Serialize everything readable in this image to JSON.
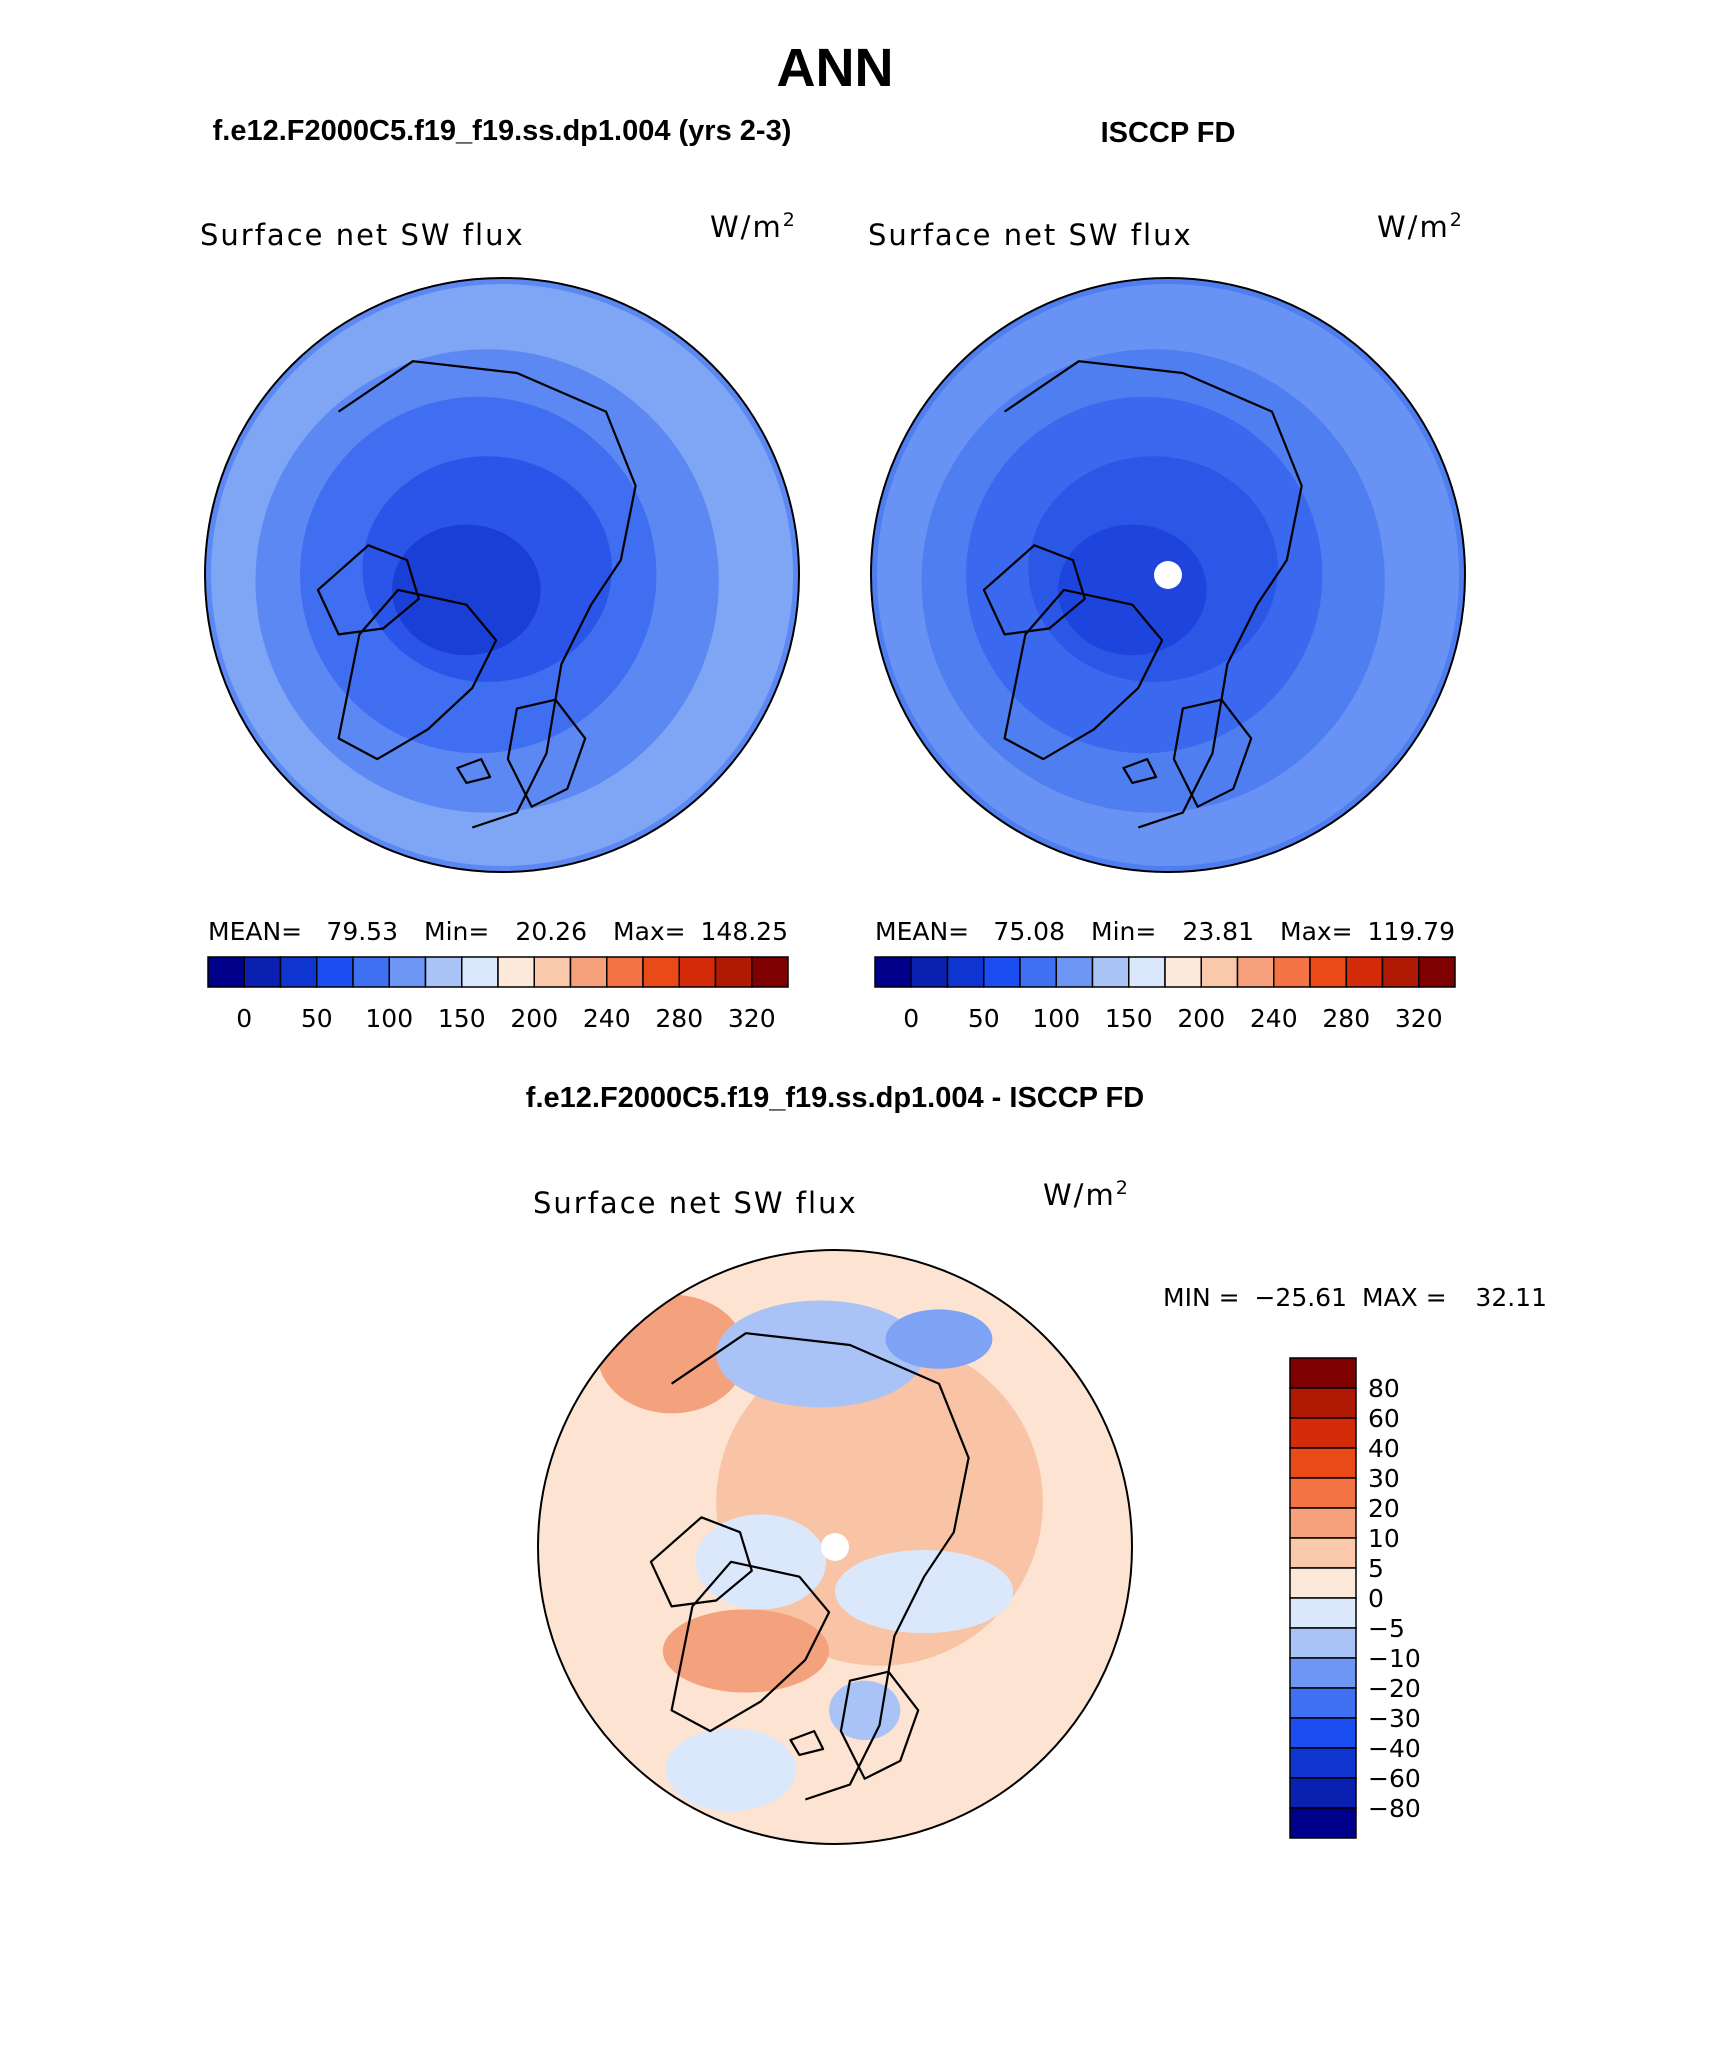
{
  "page": {
    "title": "ANN",
    "diff_title": "f.e12.F2000C5.f19_f19.ss.dp1.004 - ISCCP FD"
  },
  "chart_data": [
    {
      "type": "contour-map",
      "projection": "north-polar-stereographic",
      "header": "f.e12.F2000C5.f19_f19.ss.dp1.004 (yrs 2-3)",
      "variable": "Surface net SW flux",
      "units": "W/m",
      "units_exp": "2",
      "stats": {
        "mean_label": "MEAN=",
        "mean": "79.53",
        "min_label": "Min=",
        "min": "20.26",
        "max_label": "Max=",
        "max": "148.25"
      },
      "colorbar": {
        "orientation": "horizontal",
        "tick_labels": [
          "0",
          "50",
          "100",
          "150",
          "200",
          "240",
          "280",
          "320"
        ],
        "colors": [
          "#00008b",
          "#0a20b0",
          "#0f35d0",
          "#1a4ef0",
          "#3f70f2",
          "#6e96f4",
          "#a9c3f7",
          "#dbe8fb",
          "#fde9da",
          "#fac9ac",
          "#f6a07c",
          "#f47344",
          "#ea4a17",
          "#d32a07",
          "#b01a05",
          "#7f0000"
        ]
      },
      "fill_palette": [
        "#1a3fd6",
        "#2a55e8",
        "#3f6ef0",
        "#5b88f2",
        "#7fa5f5"
      ]
    },
    {
      "type": "contour-map",
      "projection": "north-polar-stereographic",
      "header": "ISCCP FD",
      "variable": "Surface net SW flux",
      "units": "W/m",
      "units_exp": "2",
      "stats": {
        "mean_label": "MEAN=",
        "mean": "75.08",
        "min_label": "Min=",
        "min": "23.81",
        "max_label": "Max=",
        "max": "119.79"
      },
      "colorbar": {
        "orientation": "horizontal",
        "tick_labels": [
          "0",
          "50",
          "100",
          "150",
          "200",
          "240",
          "280",
          "320"
        ],
        "colors": [
          "#00008b",
          "#0a20b0",
          "#0f35d0",
          "#1a4ef0",
          "#3f70f2",
          "#6e96f4",
          "#a9c3f7",
          "#dbe8fb",
          "#fde9da",
          "#fac9ac",
          "#f6a07c",
          "#f47344",
          "#ea4a17",
          "#d32a07",
          "#b01a05",
          "#7f0000"
        ]
      },
      "fill_palette": [
        "#1d44dc",
        "#2b57e6",
        "#3a68ee",
        "#4f7ef0",
        "#6892f3"
      ]
    },
    {
      "type": "contour-map",
      "projection": "north-polar-stereographic",
      "header": "f.e12.F2000C5.f19_f19.ss.dp1.004 - ISCCP FD",
      "variable": "Surface net SW flux",
      "units": "W/m",
      "units_exp": "2",
      "stats": {
        "min_label": "MIN =",
        "min": "−25.61",
        "max_label": "MAX =",
        "max": "32.11"
      },
      "colorbar": {
        "orientation": "vertical",
        "tick_labels": [
          "80",
          "60",
          "40",
          "30",
          "20",
          "10",
          "5",
          "0",
          "−5",
          "−10",
          "−20",
          "−30",
          "−40",
          "−60",
          "−80"
        ],
        "colors": [
          "#7f0000",
          "#b01a05",
          "#d32a07",
          "#ea4a17",
          "#f47344",
          "#f6a07c",
          "#fac9ac",
          "#fde9da",
          "#dbe8fb",
          "#a9c3f7",
          "#6e96f4",
          "#3f70f2",
          "#1a4ef0",
          "#0f35d0",
          "#0a20b0",
          "#00008b"
        ]
      },
      "fill_palette": [
        "#fde4d2",
        "#f9c3a6",
        "#f4a17e",
        "#dbe8fb",
        "#a9c3f7",
        "#7ea3f4"
      ]
    }
  ]
}
